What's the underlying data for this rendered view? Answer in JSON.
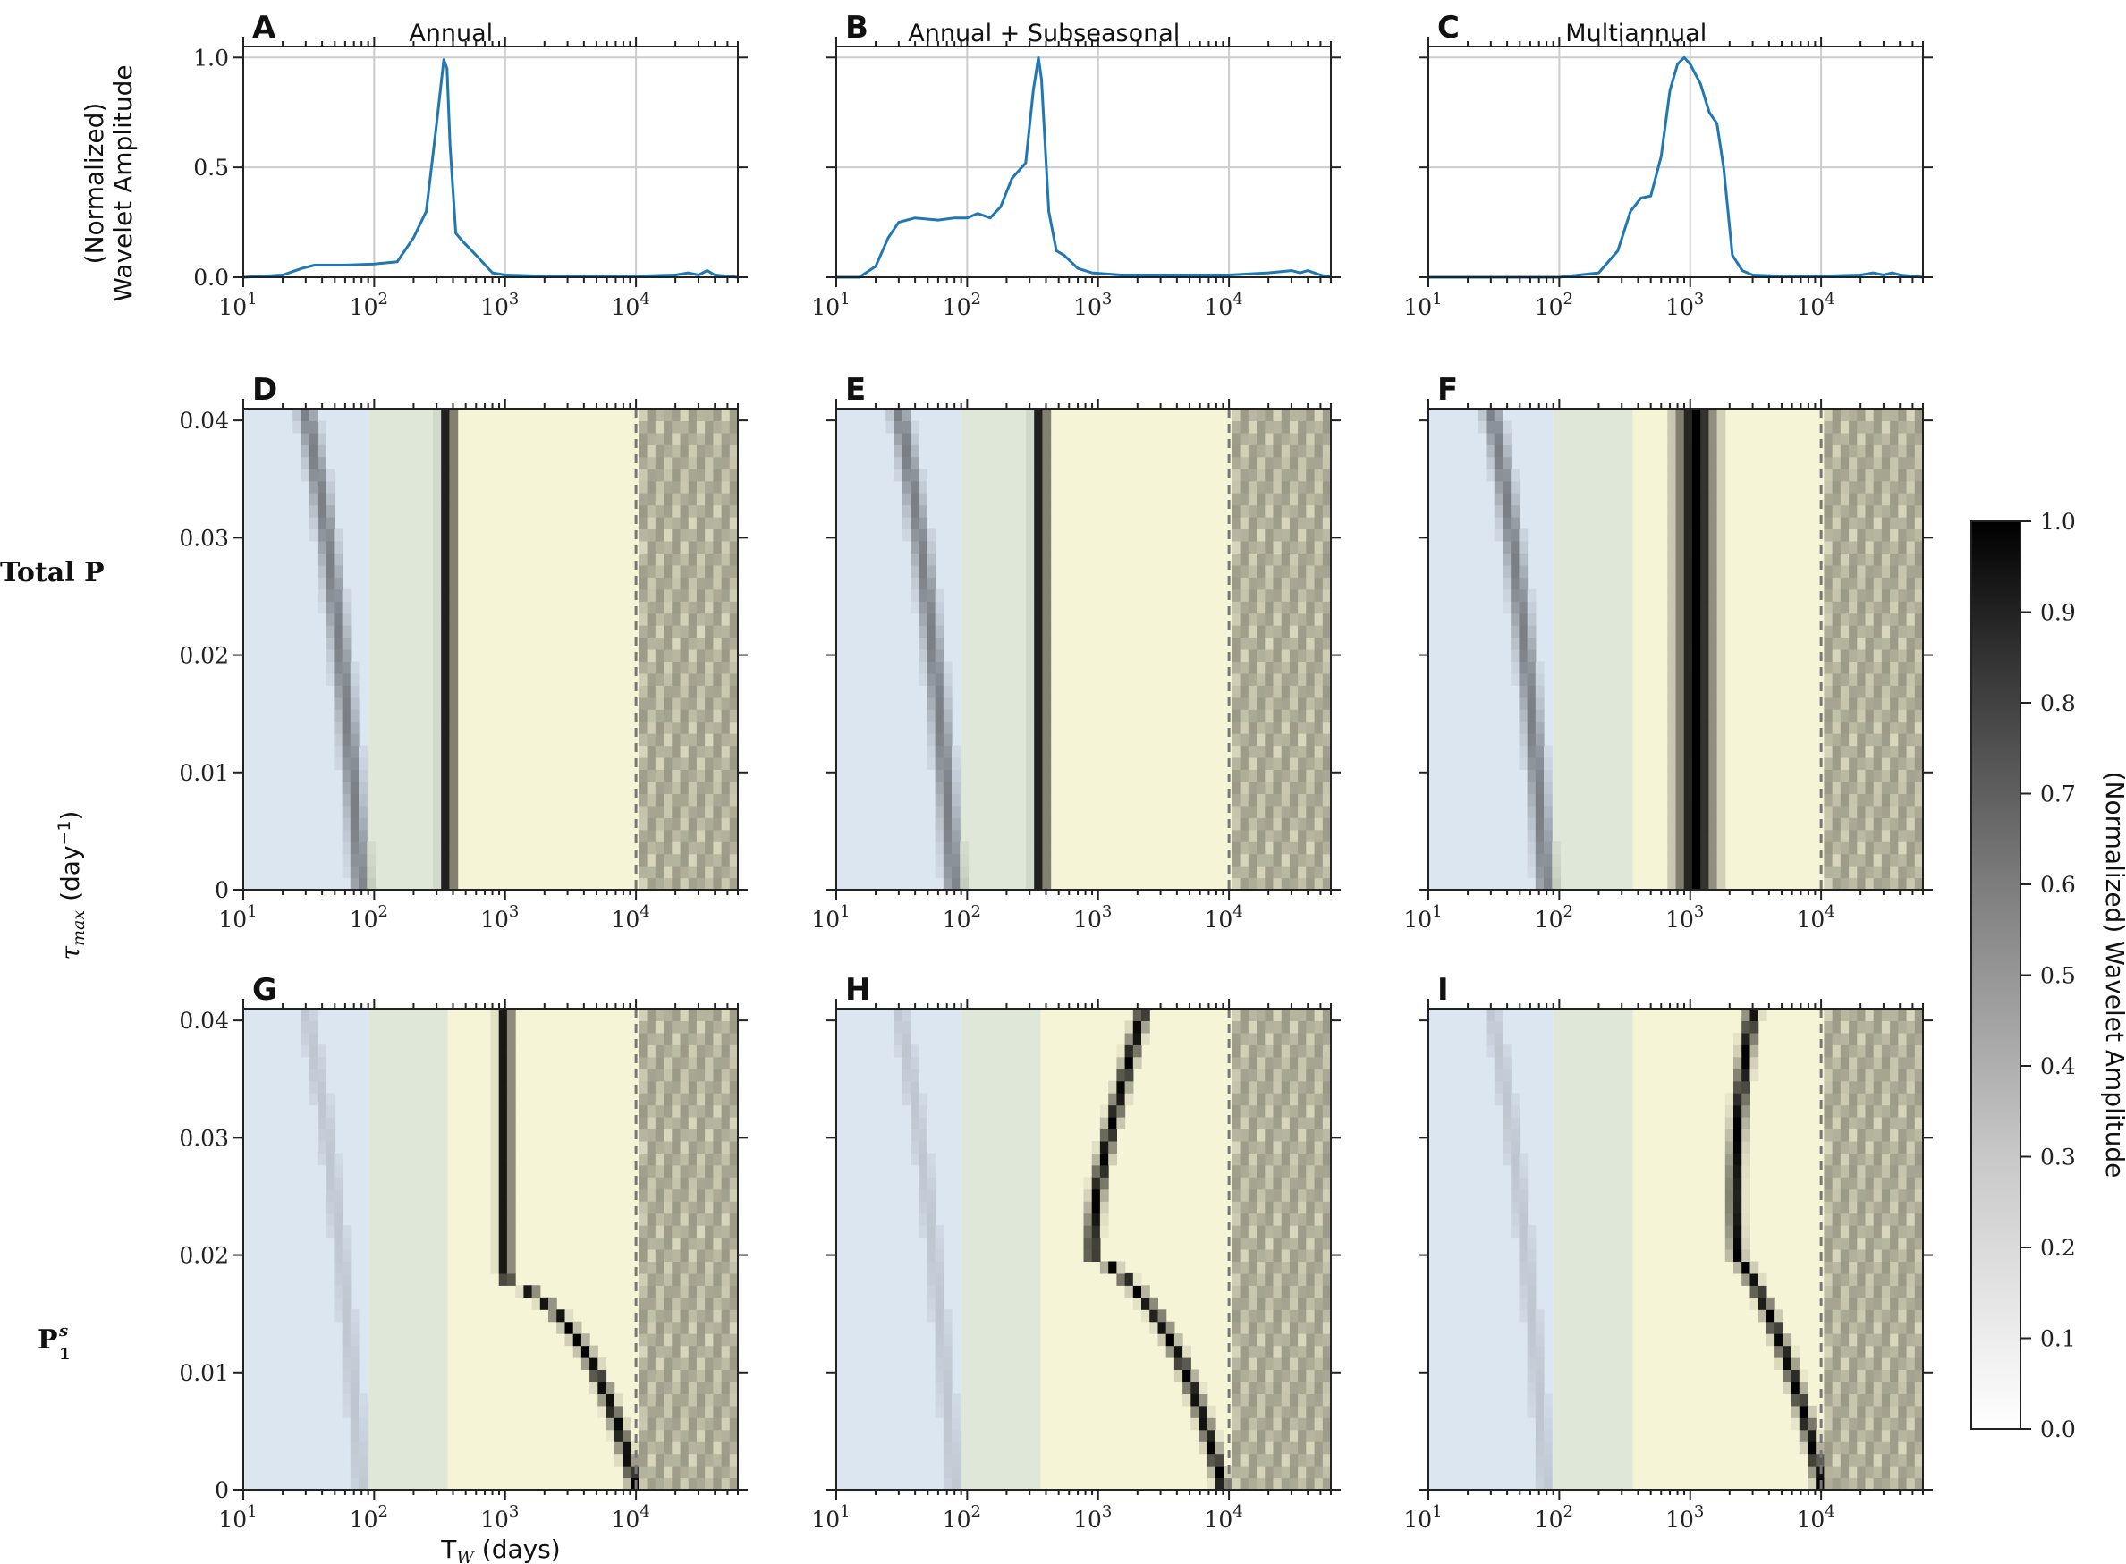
{
  "figure": {
    "row_labels": {
      "total": "Total P",
      "p1s_main": "P",
      "p1s_sub": "1",
      "p1s_sup": "s"
    },
    "y_label_heatmaps": {
      "tau": "τ",
      "tau_sub": "max",
      "unit": "(day",
      "unit_sup": "−1",
      "unit_close": ")"
    },
    "y_label_lines": [
      "(Normalized)",
      "Wavelet Amplitude"
    ],
    "x_label": {
      "main": "T",
      "sub": "W",
      "unit": " (days)"
    },
    "colorbar": {
      "label": "(Normalized) Wavelet Amplitude",
      "ticks": [
        "0.0",
        "0.1",
        "0.2",
        "0.3",
        "0.4",
        "0.5",
        "0.6",
        "0.7",
        "0.8",
        "0.9",
        "1.0"
      ],
      "colors": {
        "low": "#ffffff",
        "high": "#000000"
      }
    },
    "band_colors": {
      "subseasonal": "#dce6f1",
      "seasonal": "#dfe8d8",
      "annual_plus": "#f2f0d0",
      "background": "#f6f4d6"
    }
  },
  "chart_data": [
    {
      "type": "line",
      "panel": "A",
      "title": "Annual",
      "xscale": "log",
      "xlim": [
        10,
        60000
      ],
      "ylim": [
        0,
        1.05
      ],
      "xticks": [
        "10",
        "10",
        "10",
        "10"
      ],
      "xtick_exp": [
        "1",
        "2",
        "3",
        "4"
      ],
      "yticks": [
        "0.0",
        "0.5",
        "1.0"
      ],
      "grid": true,
      "color": "#1f77b4",
      "x": [
        10,
        20,
        28,
        35,
        60,
        100,
        150,
        200,
        250,
        300,
        340,
        360,
        380,
        420,
        480,
        600,
        800,
        1000,
        2000,
        5000,
        10000,
        20000,
        25000,
        30000,
        35000,
        40000,
        50000,
        60000
      ],
      "y": [
        0.0,
        0.01,
        0.04,
        0.055,
        0.055,
        0.06,
        0.07,
        0.18,
        0.3,
        0.7,
        0.99,
        0.95,
        0.6,
        0.2,
        0.16,
        0.1,
        0.02,
        0.01,
        0.005,
        0.005,
        0.005,
        0.01,
        0.02,
        0.01,
        0.03,
        0.01,
        0.005,
        0.0
      ]
    },
    {
      "type": "line",
      "panel": "B",
      "title": "Annual + Subseasonal",
      "xscale": "log",
      "xlim": [
        10,
        60000
      ],
      "ylim": [
        0,
        1.05
      ],
      "xticks": [
        "10",
        "10",
        "10",
        "10"
      ],
      "xtick_exp": [
        "1",
        "2",
        "3",
        "4"
      ],
      "yticks": [
        "0.0",
        "0.5",
        "1.0"
      ],
      "grid": true,
      "color": "#1f77b4",
      "x": [
        10,
        15,
        20,
        25,
        30,
        40,
        60,
        80,
        100,
        120,
        150,
        180,
        220,
        280,
        320,
        350,
        370,
        420,
        480,
        550,
        700,
        900,
        1500,
        5000,
        10000,
        20000,
        30000,
        35000,
        40000,
        50000,
        60000
      ],
      "y": [
        0.0,
        0.0,
        0.05,
        0.18,
        0.25,
        0.27,
        0.26,
        0.27,
        0.27,
        0.29,
        0.27,
        0.32,
        0.45,
        0.52,
        0.85,
        1.0,
        0.9,
        0.3,
        0.12,
        0.1,
        0.04,
        0.02,
        0.01,
        0.01,
        0.01,
        0.02,
        0.03,
        0.02,
        0.03,
        0.01,
        0.0
      ]
    },
    {
      "type": "line",
      "panel": "C",
      "title": "Multiannual",
      "xscale": "log",
      "xlim": [
        10,
        60000
      ],
      "ylim": [
        0,
        1.05
      ],
      "xticks": [
        "10",
        "10",
        "10",
        "10"
      ],
      "xtick_exp": [
        "1",
        "2",
        "3",
        "4"
      ],
      "yticks": [
        "0.0",
        "0.5",
        "1.0"
      ],
      "grid": true,
      "color": "#1f77b4",
      "x": [
        10,
        100,
        200,
        280,
        350,
        420,
        500,
        600,
        700,
        800,
        900,
        1000,
        1200,
        1400,
        1600,
        1800,
        2100,
        2500,
        3000,
        5000,
        10000,
        20000,
        25000,
        30000,
        35000,
        40000,
        50000,
        60000
      ],
      "y": [
        0.0,
        0.0,
        0.02,
        0.12,
        0.3,
        0.36,
        0.37,
        0.55,
        0.85,
        0.97,
        1.0,
        0.97,
        0.88,
        0.75,
        0.7,
        0.5,
        0.1,
        0.03,
        0.01,
        0.005,
        0.005,
        0.01,
        0.02,
        0.01,
        0.02,
        0.01,
        0.005,
        0.0
      ]
    },
    {
      "type": "heatmap",
      "panel": "D",
      "row": "Total P",
      "peak_curve": "annual",
      "xscale": "log",
      "xlim": [
        10,
        60000
      ],
      "ylim": [
        0,
        0.041
      ],
      "yticks": [
        "0",
        "0.01",
        "0.02",
        "0.03",
        "0.04"
      ],
      "dashed_line_x": 10000
    },
    {
      "type": "heatmap",
      "panel": "E",
      "row": "Total P",
      "peak_curve": "annual",
      "xscale": "log",
      "xlim": [
        10,
        60000
      ],
      "ylim": [
        0,
        0.041
      ],
      "yticks": [
        "0",
        "0.01",
        "0.02",
        "0.03",
        "0.04"
      ],
      "dashed_line_x": 10000
    },
    {
      "type": "heatmap",
      "panel": "F",
      "row": "Total P",
      "peak_curve": "multiannual",
      "xscale": "log",
      "xlim": [
        10,
        60000
      ],
      "ylim": [
        0,
        0.041
      ],
      "yticks": [
        "0",
        "0.01",
        "0.02",
        "0.03",
        "0.04"
      ],
      "dashed_line_x": 10000
    },
    {
      "type": "heatmap",
      "panel": "G",
      "row": "P1s",
      "peak_curve": "annual-shift",
      "xscale": "log",
      "xlim": [
        10,
        60000
      ],
      "ylim": [
        0,
        0.041
      ],
      "yticks": [
        "0",
        "0.01",
        "0.02",
        "0.03",
        "0.04"
      ],
      "dashed_line_x": 10000
    },
    {
      "type": "heatmap",
      "panel": "H",
      "row": "P1s",
      "peak_curve": "arc",
      "xscale": "log",
      "xlim": [
        10,
        60000
      ],
      "ylim": [
        0,
        0.041
      ],
      "yticks": [
        "0",
        "0.01",
        "0.02",
        "0.03",
        "0.04"
      ],
      "dashed_line_x": 10000
    },
    {
      "type": "heatmap",
      "panel": "I",
      "row": "P1s",
      "peak_curve": "arc-wide",
      "xscale": "log",
      "xlim": [
        10,
        60000
      ],
      "ylim": [
        0,
        0.041
      ],
      "yticks": [
        "0",
        "0.01",
        "0.02",
        "0.03",
        "0.04"
      ],
      "dashed_line_x": 10000
    }
  ]
}
